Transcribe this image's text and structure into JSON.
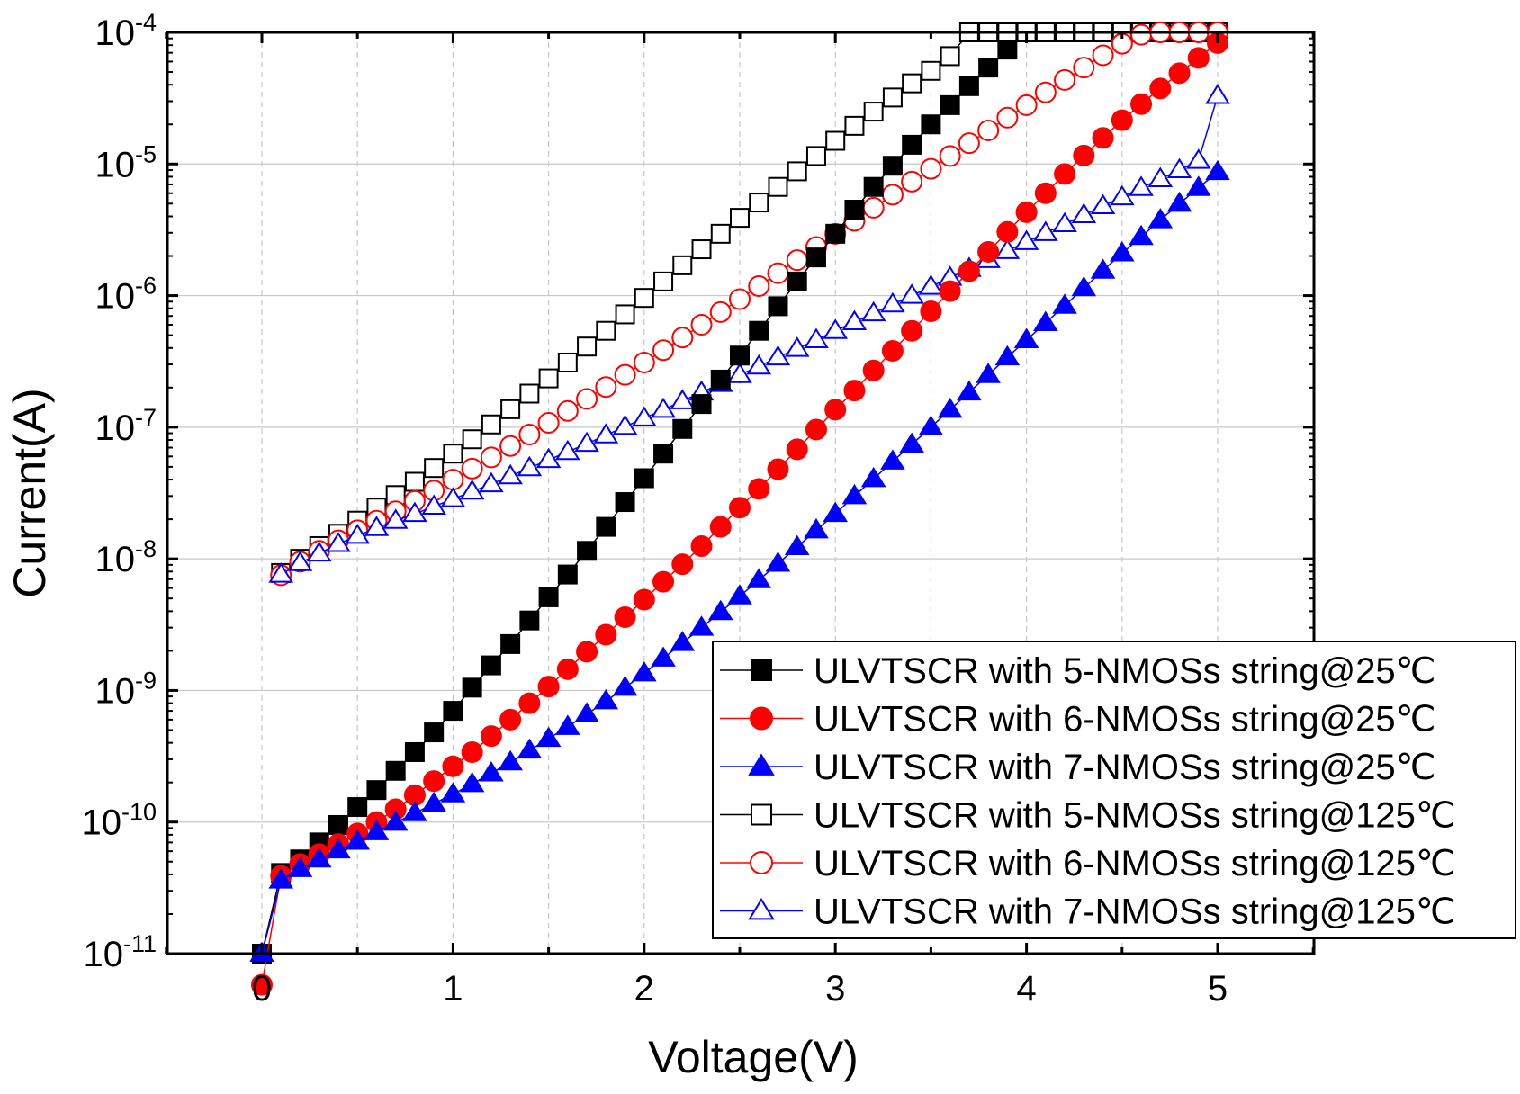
{
  "chart_data": {
    "type": "scatter",
    "title": "",
    "xlabel": "Voltage(V)",
    "ylabel": "Current(A)",
    "xlim": [
      -0.5,
      5.5
    ],
    "ylim": [
      1e-11,
      0.0001
    ],
    "yscale": "log",
    "grid": true,
    "legend_position": "bottom-right",
    "x_ticks": [
      0,
      1,
      2,
      3,
      4,
      5
    ],
    "y_ticks": [
      {
        "value": 1e-11,
        "base": "10",
        "exp": "-11"
      },
      {
        "value": 1e-10,
        "base": "10",
        "exp": "-10"
      },
      {
        "value": 1e-09,
        "base": "10",
        "exp": "-9"
      },
      {
        "value": 1e-08,
        "base": "10",
        "exp": "-8"
      },
      {
        "value": 1e-07,
        "base": "10",
        "exp": "-7"
      },
      {
        "value": 1e-06,
        "base": "10",
        "exp": "-6"
      },
      {
        "value": 1e-05,
        "base": "10",
        "exp": "-5"
      },
      {
        "value": 0.0001,
        "base": "10",
        "exp": "-4"
      }
    ],
    "series": [
      {
        "name": "ULVTSCR with 5-NMOSs string@25℃",
        "marker": "square",
        "filled": true,
        "color": "#000000",
        "x": [
          0,
          0.1,
          0.2,
          0.3,
          0.4,
          0.5,
          0.6,
          0.7,
          0.8,
          0.9,
          1.0,
          1.1,
          1.2,
          1.3,
          1.4,
          1.5,
          1.6,
          1.7,
          1.8,
          1.9,
          2.0,
          2.1,
          2.2,
          2.3,
          2.4,
          2.5,
          2.6,
          2.7,
          2.8,
          2.9,
          3.0,
          3.1,
          3.2,
          3.3,
          3.4,
          3.5,
          3.6,
          3.7,
          3.8,
          3.9
        ],
        "y": [
          1e-11,
          4.1e-11,
          5.2e-11,
          7e-11,
          9.5e-11,
          1.3e-10,
          1.75e-10,
          2.45e-10,
          3.4e-10,
          4.8e-10,
          7e-10,
          1.05e-09,
          1.55e-09,
          2.25e-09,
          3.4e-09,
          5.1e-09,
          7.6e-09,
          1.15e-08,
          1.75e-08,
          2.7e-08,
          4.1e-08,
          6.3e-08,
          9.7e-08,
          1.5e-07,
          2.3e-07,
          3.5e-07,
          5.4e-07,
          8.3e-07,
          1.28e-06,
          1.95e-06,
          2.95e-06,
          4.5e-06,
          6.7e-06,
          9.7e-06,
          1.4e-05,
          2e-05,
          2.8e-05,
          3.9e-05,
          5.4e-05,
          7.4e-05
        ]
      },
      {
        "name": "ULVTSCR with 6-NMOSs string@25℃",
        "marker": "circle",
        "filled": true,
        "color": "#ff0000",
        "x": [
          0,
          0.1,
          0.2,
          0.3,
          0.4,
          0.5,
          0.6,
          0.7,
          0.8,
          0.9,
          1.0,
          1.1,
          1.2,
          1.3,
          1.4,
          1.5,
          1.6,
          1.7,
          1.8,
          1.9,
          2.0,
          2.1,
          2.2,
          2.3,
          2.4,
          2.5,
          2.6,
          2.7,
          2.8,
          2.9,
          3.0,
          3.1,
          3.2,
          3.3,
          3.4,
          3.5,
          3.6,
          3.7,
          3.8,
          3.9,
          4.0,
          4.1,
          4.2,
          4.3,
          4.4,
          4.5,
          4.6,
          4.7,
          4.8,
          4.9,
          5.0
        ],
        "y": [
          5.8e-12,
          3.9e-11,
          4.8e-11,
          5.7e-11,
          6.8e-11,
          8.2e-11,
          1e-10,
          1.25e-10,
          1.6e-10,
          2.05e-10,
          2.65e-10,
          3.4e-10,
          4.5e-10,
          6e-10,
          8e-10,
          1.07e-09,
          1.45e-09,
          1.97e-09,
          2.65e-09,
          3.6e-09,
          4.9e-09,
          6.7e-09,
          9.1e-09,
          1.25e-08,
          1.75e-08,
          2.45e-08,
          3.4e-08,
          4.8e-08,
          6.8e-08,
          9.6e-08,
          1.36e-07,
          1.9e-07,
          2.7e-07,
          3.8e-07,
          5.4e-07,
          7.6e-07,
          1.08e-06,
          1.53e-06,
          2.15e-06,
          3.05e-06,
          4.3e-06,
          6e-06,
          8.4e-06,
          1.16e-05,
          1.58e-05,
          2.15e-05,
          2.85e-05,
          3.75e-05,
          4.9e-05,
          6.4e-05,
          8.3e-05
        ]
      },
      {
        "name": "ULVTSCR with 7-NMOSs string@25℃",
        "marker": "triangle",
        "filled": true,
        "color": "#0000ff",
        "x": [
          0,
          0.1,
          0.2,
          0.3,
          0.4,
          0.5,
          0.6,
          0.7,
          0.8,
          0.9,
          1.0,
          1.1,
          1.2,
          1.3,
          1.4,
          1.5,
          1.6,
          1.7,
          1.8,
          1.9,
          2.0,
          2.1,
          2.2,
          2.3,
          2.4,
          2.5,
          2.6,
          2.7,
          2.8,
          2.9,
          3.0,
          3.1,
          3.2,
          3.3,
          3.4,
          3.5,
          3.6,
          3.7,
          3.8,
          3.9,
          4.0,
          4.1,
          4.2,
          4.3,
          4.4,
          4.5,
          4.6,
          4.7,
          4.8,
          4.9,
          5.0
        ],
        "y": [
          1e-11,
          3.6e-11,
          4.4e-11,
          5.2e-11,
          6.1e-11,
          7.1e-11,
          8.4e-11,
          9.9e-11,
          1.17e-10,
          1.38e-10,
          1.63e-10,
          1.95e-10,
          2.35e-10,
          2.85e-10,
          3.5e-10,
          4.3e-10,
          5.3e-10,
          6.6e-10,
          8.3e-10,
          1.05e-09,
          1.35e-09,
          1.75e-09,
          2.3e-09,
          3e-09,
          3.95e-09,
          5.2e-09,
          6.9e-09,
          9.2e-09,
          1.23e-08,
          1.65e-08,
          2.2e-08,
          3e-08,
          4.05e-08,
          5.5e-08,
          7.4e-08,
          1e-07,
          1.36e-07,
          1.84e-07,
          2.5e-07,
          3.4e-07,
          4.6e-07,
          6.2e-07,
          8.4e-07,
          1.14e-06,
          1.55e-06,
          2.1e-06,
          2.8e-06,
          3.75e-06,
          5e-06,
          6.6e-06,
          8.7e-06
        ]
      },
      {
        "name": "ULVTSCR with 5-NMOSs string@125℃",
        "marker": "square",
        "filled": false,
        "color": "#000000",
        "x": [
          0.1,
          0.2,
          0.3,
          0.4,
          0.5,
          0.6,
          0.7,
          0.8,
          0.9,
          1.0,
          1.1,
          1.2,
          1.3,
          1.4,
          1.5,
          1.6,
          1.7,
          1.8,
          1.9,
          2.0,
          2.1,
          2.2,
          2.3,
          2.4,
          2.5,
          2.6,
          2.7,
          2.8,
          2.9,
          3.0,
          3.1,
          3.2,
          3.3,
          3.4,
          3.5,
          3.6,
          3.7,
          3.8,
          3.9,
          4.0,
          4.1,
          4.2,
          4.3,
          4.4,
          4.5,
          4.6,
          4.7,
          4.8,
          4.9,
          5.0
        ],
        "y": [
          7.8e-09,
          1e-08,
          1.25e-08,
          1.55e-08,
          1.95e-08,
          2.45e-08,
          3.05e-08,
          3.85e-08,
          4.9e-08,
          6.3e-08,
          8.1e-08,
          1.05e-07,
          1.37e-07,
          1.8e-07,
          2.35e-07,
          3.1e-07,
          4.1e-07,
          5.4e-07,
          7.2e-07,
          9.6e-07,
          1.28e-06,
          1.7e-06,
          2.25e-06,
          2.95e-06,
          3.9e-06,
          5.1e-06,
          6.7e-06,
          8.8e-06,
          1.15e-05,
          1.5e-05,
          1.95e-05,
          2.5e-05,
          3.2e-05,
          4.1e-05,
          5.1e-05,
          6.6e-05,
          0.0001,
          0.0001,
          0.0001,
          0.0001,
          0.0001,
          0.0001,
          0.0001,
          0.0001,
          0.0001,
          0.0001,
          0.0001,
          0.0001,
          0.0001,
          0.0001
        ]
      },
      {
        "name": "ULVTSCR with 6-NMOSs string@125℃",
        "marker": "circle",
        "filled": false,
        "color": "#ff0000",
        "x": [
          0.1,
          0.2,
          0.3,
          0.4,
          0.5,
          0.6,
          0.7,
          0.8,
          0.9,
          1.0,
          1.1,
          1.2,
          1.3,
          1.4,
          1.5,
          1.6,
          1.7,
          1.8,
          1.9,
          2.0,
          2.1,
          2.2,
          2.3,
          2.4,
          2.5,
          2.6,
          2.7,
          2.8,
          2.9,
          3.0,
          3.1,
          3.2,
          3.3,
          3.4,
          3.5,
          3.6,
          3.7,
          3.8,
          3.9,
          4.0,
          4.1,
          4.2,
          4.3,
          4.4,
          4.5,
          4.6,
          4.7,
          4.8,
          4.9,
          5.0
        ],
        "y": [
          7.5e-09,
          9.5e-09,
          1.15e-08,
          1.38e-08,
          1.65e-08,
          1.95e-08,
          2.3e-08,
          2.75e-08,
          3.3e-08,
          4e-08,
          4.85e-08,
          5.9e-08,
          7.2e-08,
          8.8e-08,
          1.08e-07,
          1.33e-07,
          1.64e-07,
          2.02e-07,
          2.5e-07,
          3.1e-07,
          3.85e-07,
          4.8e-07,
          6e-07,
          7.5e-07,
          9.4e-07,
          1.18e-06,
          1.48e-06,
          1.86e-06,
          2.34e-06,
          2.95e-06,
          3.7e-06,
          4.65e-06,
          5.85e-06,
          7.35e-06,
          9.2e-06,
          1.15e-05,
          1.44e-05,
          1.8e-05,
          2.25e-05,
          2.8e-05,
          3.5e-05,
          4.35e-05,
          5.4e-05,
          6.7e-05,
          8.2e-05,
          9.6e-05,
          0.0001,
          0.0001,
          0.0001,
          0.0001
        ]
      },
      {
        "name": "ULVTSCR with 7-NMOSs string@125℃",
        "marker": "triangle",
        "filled": false,
        "color": "#0000ff",
        "x": [
          0.1,
          0.2,
          0.3,
          0.4,
          0.5,
          0.6,
          0.7,
          0.8,
          0.9,
          1.0,
          1.1,
          1.2,
          1.3,
          1.4,
          1.5,
          1.6,
          1.7,
          1.8,
          1.9,
          2.0,
          2.1,
          2.2,
          2.3,
          2.4,
          2.5,
          2.6,
          2.7,
          2.8,
          2.9,
          3.0,
          3.1,
          3.2,
          3.3,
          3.4,
          3.5,
          3.6,
          3.7,
          3.8,
          3.9,
          4.0,
          4.1,
          4.2,
          4.3,
          4.4,
          4.5,
          4.6,
          4.7,
          4.8,
          4.9,
          5.0
        ],
        "y": [
          7.6e-09,
          9.3e-09,
          1.1e-08,
          1.3e-08,
          1.5e-08,
          1.72e-08,
          1.95e-08,
          2.2e-08,
          2.5e-08,
          2.85e-08,
          3.25e-08,
          3.7e-08,
          4.25e-08,
          4.9e-08,
          5.65e-08,
          6.5e-08,
          7.5e-08,
          8.7e-08,
          1.01e-07,
          1.17e-07,
          1.36e-07,
          1.58e-07,
          1.84e-07,
          2.14e-07,
          2.5e-07,
          2.9e-07,
          3.4e-07,
          3.95e-07,
          4.6e-07,
          5.4e-07,
          6.3e-07,
          7.35e-07,
          8.6e-07,
          1e-06,
          1.17e-06,
          1.37e-06,
          1.6e-06,
          1.87e-06,
          2.19e-06,
          2.56e-06,
          3e-06,
          3.5e-06,
          4.1e-06,
          4.8e-06,
          5.6e-06,
          6.6e-06,
          7.7e-06,
          9e-06,
          1.06e-05,
          3.3e-05
        ]
      }
    ]
  }
}
